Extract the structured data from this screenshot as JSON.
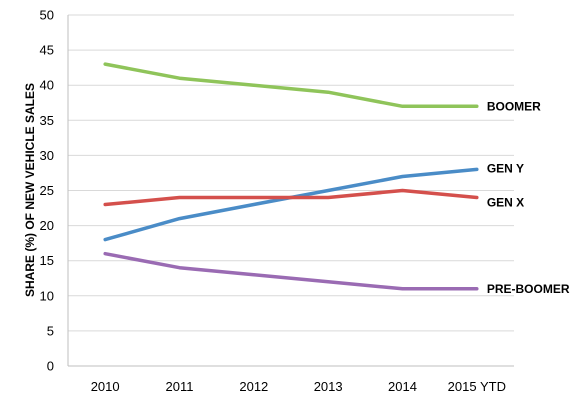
{
  "chart_data": {
    "type": "line",
    "title": "",
    "xlabel": "",
    "ylabel": "SHARE (%) OF NEW VEHICLE SALES",
    "categories": [
      "2010",
      "2011",
      "2012",
      "2013",
      "2014",
      "2015 YTD"
    ],
    "ylim": [
      0,
      50
    ],
    "yticks": [
      0,
      5,
      10,
      15,
      20,
      25,
      30,
      35,
      40,
      45,
      50
    ],
    "grid": true,
    "legend": "inline-right",
    "series": [
      {
        "name": "BOOMER",
        "color": "#8fc45a",
        "values": [
          43,
          41,
          40,
          39,
          37,
          37
        ]
      },
      {
        "name": "GEN Y",
        "color": "#4a8cc7",
        "values": [
          18,
          21,
          23,
          25,
          27,
          28
        ]
      },
      {
        "name": "GEN X",
        "color": "#d4504c",
        "values": [
          23,
          24,
          24,
          24,
          25,
          24
        ]
      },
      {
        "name": "PRE-BOOMER",
        "color": "#9a6bb3",
        "values": [
          16,
          14,
          13,
          12,
          11,
          11
        ]
      }
    ]
  }
}
